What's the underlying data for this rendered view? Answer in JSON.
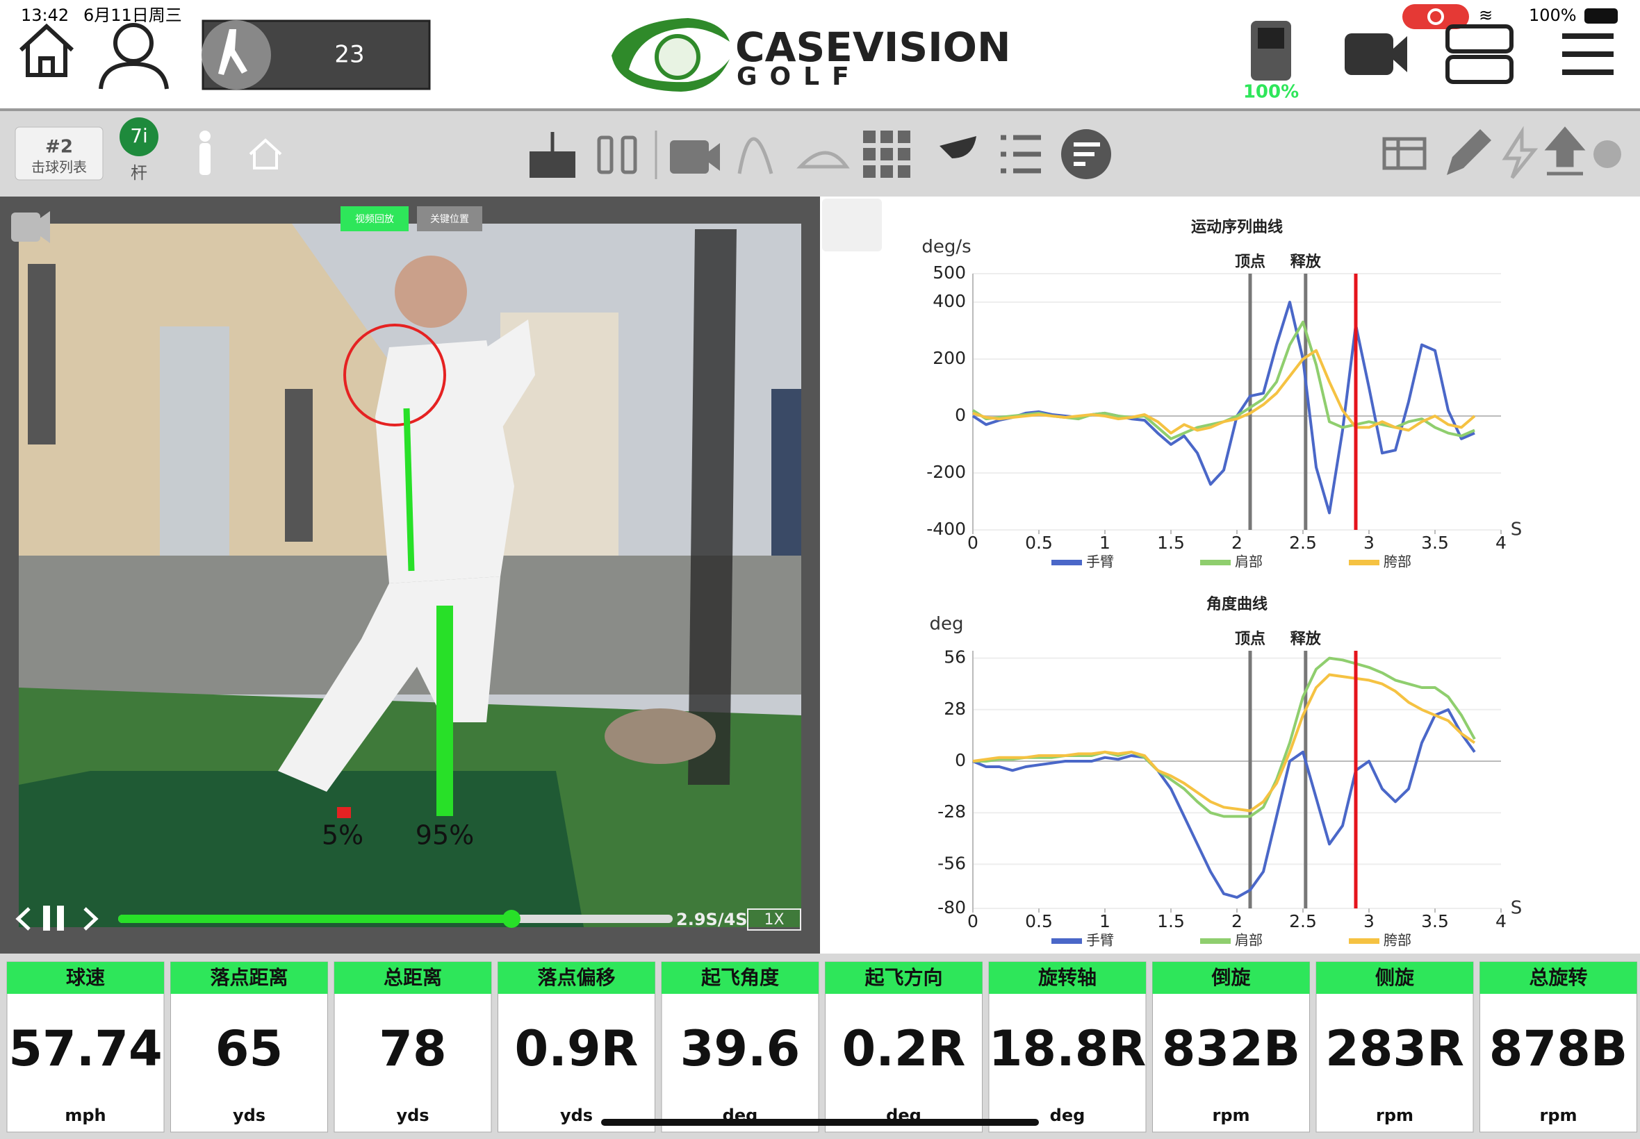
{
  "status_bar": {
    "time": "13:42",
    "date": "6月11日周三",
    "battery": "100%"
  },
  "header": {
    "shot_count": "23",
    "logo": {
      "title": "CASEVISION",
      "subtitle": "GOLF"
    },
    "device_battery": "100%"
  },
  "toolbar": {
    "shot_number": "#2",
    "shot_list": "击球列表",
    "club": "7i",
    "club_label": "杆"
  },
  "video": {
    "tabs": [
      "视频回放",
      "关键位置"
    ],
    "overlay_labels": [
      "5%",
      "95%"
    ],
    "time": "2.9S/4S",
    "speed": "1X"
  },
  "chart_data": [
    {
      "type": "line",
      "title": "运动序列曲线",
      "y_label": "deg/s",
      "x_label": "S",
      "xlim": [
        0,
        4
      ],
      "xticks": [
        0,
        0.5,
        1,
        1.5,
        2,
        2.5,
        3,
        3.5,
        4
      ],
      "ylim": [
        -400,
        500
      ],
      "yticks": [
        -400,
        -200,
        0,
        200,
        400,
        500
      ],
      "markers": [
        {
          "label": "顶点",
          "x": 2.1
        },
        {
          "label": "释放",
          "x": 2.52
        }
      ],
      "cursor": 2.9,
      "x": [
        0,
        0.1,
        0.2,
        0.3,
        0.4,
        0.5,
        0.6,
        0.7,
        0.8,
        0.9,
        1,
        1.1,
        1.2,
        1.3,
        1.4,
        1.5,
        1.6,
        1.7,
        1.8,
        1.9,
        2,
        2.1,
        2.2,
        2.3,
        2.4,
        2.5,
        2.6,
        2.7,
        2.8,
        2.9,
        3,
        3.1,
        3.2,
        3.3,
        3.4,
        3.5,
        3.6,
        3.7,
        3.8
      ],
      "series": [
        {
          "name": "手臂",
          "color": "#4a67c8",
          "values": [
            0,
            -30,
            -15,
            -5,
            10,
            15,
            5,
            0,
            -5,
            5,
            10,
            0,
            -10,
            -15,
            -60,
            -100,
            -70,
            -130,
            -240,
            -190,
            0,
            70,
            80,
            250,
            400,
            200,
            -180,
            -340,
            -50,
            320,
            100,
            -130,
            -120,
            50,
            250,
            230,
            20,
            -80,
            -60
          ]
        },
        {
          "name": "肩部",
          "color": "#8fce6e",
          "values": [
            20,
            -10,
            -5,
            0,
            5,
            10,
            0,
            -5,
            -10,
            5,
            10,
            0,
            -5,
            0,
            -40,
            -80,
            -60,
            -40,
            -30,
            -20,
            0,
            30,
            60,
            120,
            250,
            330,
            180,
            -20,
            -40,
            -30,
            -20,
            -30,
            -40,
            -20,
            -10,
            -40,
            -60,
            -70,
            -50
          ]
        },
        {
          "name": "胯部",
          "color": "#f5c242",
          "values": [
            10,
            -5,
            -10,
            -5,
            0,
            5,
            0,
            -5,
            0,
            5,
            0,
            -10,
            -5,
            5,
            -20,
            -60,
            -30,
            -50,
            -40,
            -20,
            -10,
            10,
            40,
            80,
            140,
            200,
            230,
            120,
            20,
            -40,
            -40,
            -20,
            -40,
            -50,
            -20,
            0,
            -30,
            -40,
            0
          ]
        }
      ]
    },
    {
      "type": "line",
      "title": "角度曲线",
      "y_label": "deg",
      "x_label": "S",
      "xlim": [
        0,
        4
      ],
      "xticks": [
        0,
        0.5,
        1,
        1.5,
        2,
        2.5,
        3,
        3.5,
        4
      ],
      "ylim": [
        -80,
        60
      ],
      "yticks": [
        -80,
        -56,
        -28,
        0,
        28,
        56
      ],
      "markers": [
        {
          "label": "顶点",
          "x": 2.1
        },
        {
          "label": "释放",
          "x": 2.52
        }
      ],
      "cursor": 2.9,
      "x": [
        0,
        0.1,
        0.2,
        0.3,
        0.4,
        0.5,
        0.6,
        0.7,
        0.8,
        0.9,
        1,
        1.1,
        1.2,
        1.3,
        1.4,
        1.5,
        1.6,
        1.7,
        1.8,
        1.9,
        2,
        2.1,
        2.2,
        2.3,
        2.4,
        2.5,
        2.6,
        2.7,
        2.8,
        2.9,
        3,
        3.1,
        3.2,
        3.3,
        3.4,
        3.5,
        3.6,
        3.7,
        3.8
      ],
      "series": [
        {
          "name": "手臂",
          "color": "#4a67c8",
          "values": [
            0,
            -3,
            -3,
            -5,
            -3,
            -2,
            -1,
            0,
            0,
            0,
            2,
            1,
            3,
            2,
            -5,
            -15,
            -30,
            -45,
            -60,
            -72,
            -74,
            -70,
            -60,
            -30,
            0,
            5,
            -20,
            -45,
            -35,
            -5,
            0,
            -15,
            -22,
            -15,
            10,
            25,
            28,
            15,
            5
          ]
        },
        {
          "name": "肩部",
          "color": "#8fce6e",
          "values": [
            0,
            0,
            1,
            1,
            2,
            2,
            2,
            3,
            3,
            3,
            5,
            3,
            5,
            2,
            -5,
            -10,
            -15,
            -22,
            -28,
            -30,
            -30,
            -30,
            -25,
            -10,
            10,
            35,
            50,
            56,
            55,
            53,
            51,
            48,
            44,
            42,
            40,
            40,
            35,
            25,
            12
          ]
        },
        {
          "name": "胯部",
          "color": "#f5c242",
          "values": [
            0,
            1,
            2,
            2,
            2,
            3,
            3,
            3,
            4,
            4,
            5,
            4,
            5,
            3,
            -5,
            -8,
            -12,
            -17,
            -22,
            -25,
            -26,
            -27,
            -22,
            -12,
            5,
            25,
            40,
            47,
            46,
            45,
            44,
            42,
            38,
            32,
            28,
            25,
            22,
            15,
            10
          ]
        }
      ]
    }
  ],
  "metrics": [
    {
      "label": "球速",
      "value": 57.74,
      "unit": "mph"
    },
    {
      "label": "落点距离",
      "value": 65,
      "unit": "yds"
    },
    {
      "label": "总距离",
      "value": 78,
      "unit": "yds"
    },
    {
      "label": "落点偏移",
      "value": "0.9R",
      "unit": "yds"
    },
    {
      "label": "起飞角度",
      "value": 39.6,
      "unit": "deg"
    },
    {
      "label": "起飞方向",
      "value": "0.2R",
      "unit": "deg"
    },
    {
      "label": "旋转轴",
      "value": "18.8R",
      "unit": "deg"
    },
    {
      "label": "倒旋",
      "value": "832B",
      "unit": "rpm"
    },
    {
      "label": "侧旋",
      "value": "283R",
      "unit": "rpm"
    },
    {
      "label": "总旋转",
      "value": "878B",
      "unit": "rpm"
    }
  ]
}
